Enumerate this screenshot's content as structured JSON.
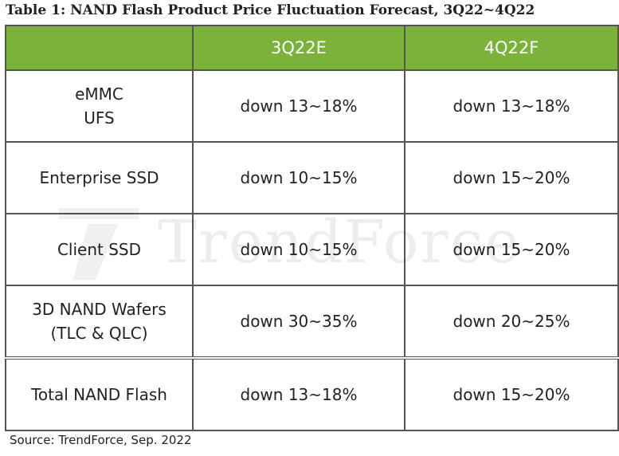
{
  "title": "Table 1: NAND Flash Product Price Fluctuation Forecast, 3Q22~4Q22",
  "header": {
    "corner": "",
    "columns": [
      "3Q22E",
      "4Q22F"
    ]
  },
  "rows": [
    {
      "label_lines": [
        "eMMC",
        "UFS"
      ],
      "q3": "down 13~18%",
      "q4": "down 13~18%"
    },
    {
      "label_lines": [
        "Enterprise SSD"
      ],
      "q3": "down 10~15%",
      "q4": "down 15~20%"
    },
    {
      "label_lines": [
        "Client SSD"
      ],
      "q3": "down 10~15%",
      "q4": "down 15~20%"
    },
    {
      "label_lines": [
        "3D NAND Wafers",
        "(TLC & QLC)"
      ],
      "q3": "down 30~35%",
      "q4": "down 20~25%"
    },
    {
      "label_lines": [
        "Total NAND Flash"
      ],
      "q3": "down 13~18%",
      "q4": "down 15~20%"
    }
  ],
  "watermark": "TrendForce",
  "source": "Source: TrendForce, Sep. 2022",
  "colors": {
    "header_bg": "#7bb33a",
    "header_text": "#ffffff",
    "border": "#555555"
  }
}
